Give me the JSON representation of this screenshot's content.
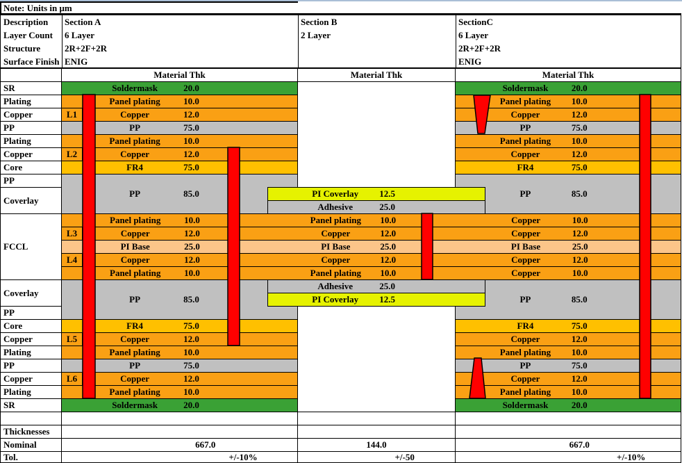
{
  "note": "Note: Units in μm",
  "header": {
    "row_labels": [
      "Description",
      "Layer Count",
      "Structure",
      "Surface Finish"
    ],
    "sections": [
      {
        "lines": [
          "Section A",
          "6 Layer",
          "2R+2F+2R",
          "ENIG"
        ]
      },
      {
        "lines": [
          "Section B",
          "2 Layer"
        ]
      },
      {
        "lines": [
          "SectionC",
          "6 Layer",
          "2R+2F+2R",
          "ENIG"
        ]
      }
    ],
    "material_thk": "Material Thk"
  },
  "colors": {
    "green": "#3AA135",
    "orange": "#FAA014",
    "gray": "#C0C0C0",
    "gold": "#FFC000",
    "peach": "#FCC589",
    "coverlay": "#E6F200",
    "red": "#FF0000",
    "grid": "#000000",
    "sheet_edge": "#A9BED6"
  },
  "stack": {
    "row_labels": [
      {
        "text": "SR",
        "row": 0,
        "rows": 1
      },
      {
        "text": "Plating",
        "row": 1,
        "rows": 1
      },
      {
        "text": "Copper",
        "row": 2,
        "rows": 1
      },
      {
        "text": "PP",
        "row": 3,
        "rows": 1
      },
      {
        "text": "Plating",
        "row": 4,
        "rows": 1
      },
      {
        "text": "Copper",
        "row": 5,
        "rows": 1
      },
      {
        "text": "Core",
        "row": 6,
        "rows": 1
      },
      {
        "text": "PP",
        "row": 7,
        "rows": 1
      },
      {
        "text": "Coverlay",
        "row": 8,
        "rows": 2
      },
      {
        "text": "FCCL",
        "row": 10,
        "rows": 5
      },
      {
        "text": "Coverlay",
        "row": 15,
        "rows": 2
      },
      {
        "text": "PP",
        "row": 17,
        "rows": 1
      },
      {
        "text": "Core",
        "row": 18,
        "rows": 1
      },
      {
        "text": "Copper",
        "row": 19,
        "rows": 1
      },
      {
        "text": "Plating",
        "row": 20,
        "rows": 1
      },
      {
        "text": "PP",
        "row": 21,
        "rows": 1
      },
      {
        "text": "Copper",
        "row": 22,
        "rows": 1
      },
      {
        "text": "Plating",
        "row": 23,
        "rows": 1
      },
      {
        "text": "SR",
        "row": 24,
        "rows": 1
      }
    ],
    "layer_ids": [
      {
        "text": "L1",
        "row": 2
      },
      {
        "text": "L2",
        "row": 5
      },
      {
        "text": "L3",
        "row": 11
      },
      {
        "text": "L4",
        "row": 13
      },
      {
        "text": "L5",
        "row": 19
      },
      {
        "text": "L6",
        "row": 22
      }
    ],
    "section_a": {
      "bars": [
        {
          "row": 0,
          "rows": 1,
          "color": "green",
          "name": "Soldermask",
          "thk": "20.0"
        },
        {
          "row": 1,
          "rows": 1,
          "color": "orange",
          "name": "Panel plating",
          "thk": "10.0"
        },
        {
          "row": 2,
          "rows": 1,
          "color": "orange",
          "name": "Copper",
          "thk": "12.0"
        },
        {
          "row": 3,
          "rows": 1,
          "color": "gray",
          "name": "PP",
          "thk": "75.0"
        },
        {
          "row": 4,
          "rows": 1,
          "color": "orange",
          "name": "Panel plating",
          "thk": "10.0"
        },
        {
          "row": 5,
          "rows": 1,
          "color": "orange",
          "name": "Copper",
          "thk": "12.0"
        },
        {
          "row": 6,
          "rows": 1,
          "color": "gold",
          "name": "FR4",
          "thk": "75.0"
        },
        {
          "row": 7,
          "rows": 3,
          "color": "gray",
          "name": "PP",
          "thk": "85.0"
        },
        {
          "row": 15,
          "rows": 3,
          "color": "gray",
          "name": "PP",
          "thk": "85.0"
        },
        {
          "row": 18,
          "rows": 1,
          "color": "gold",
          "name": "FR4",
          "thk": "75.0"
        },
        {
          "row": 19,
          "rows": 1,
          "color": "orange",
          "name": "Copper",
          "thk": "12.0"
        },
        {
          "row": 20,
          "rows": 1,
          "color": "orange",
          "name": "Panel plating",
          "thk": "10.0"
        },
        {
          "row": 21,
          "rows": 1,
          "color": "gray",
          "name": "PP",
          "thk": "75.0"
        },
        {
          "row": 22,
          "rows": 1,
          "color": "orange",
          "name": "Copper",
          "thk": "12.0"
        },
        {
          "row": 23,
          "rows": 1,
          "color": "orange",
          "name": "Panel plating",
          "thk": "10.0"
        },
        {
          "row": 24,
          "rows": 1,
          "color": "green",
          "name": "Soldermask",
          "thk": "20.0"
        }
      ]
    },
    "section_c": {
      "bars": [
        {
          "row": 0,
          "rows": 1,
          "color": "green",
          "name": "Soldermask",
          "thk": "20.0"
        },
        {
          "row": 1,
          "rows": 1,
          "color": "orange",
          "name": "Panel plating",
          "thk": "10.0"
        },
        {
          "row": 2,
          "rows": 1,
          "color": "orange",
          "name": "Copper",
          "thk": "12.0"
        },
        {
          "row": 3,
          "rows": 1,
          "color": "gray",
          "name": "PP",
          "thk": "75.0"
        },
        {
          "row": 4,
          "rows": 1,
          "color": "orange",
          "name": "Panel plating",
          "thk": "10.0"
        },
        {
          "row": 5,
          "rows": 1,
          "color": "orange",
          "name": "Copper",
          "thk": "12.0"
        },
        {
          "row": 6,
          "rows": 1,
          "color": "gold",
          "name": "FR4",
          "thk": "75.0"
        },
        {
          "row": 7,
          "rows": 3,
          "color": "gray",
          "name": "PP",
          "thk": "85.0"
        },
        {
          "row": 15,
          "rows": 3,
          "color": "gray",
          "name": "PP",
          "thk": "85.0"
        },
        {
          "row": 18,
          "rows": 1,
          "color": "gold",
          "name": "FR4",
          "thk": "75.0"
        },
        {
          "row": 19,
          "rows": 1,
          "color": "orange",
          "name": "Copper",
          "thk": "12.0"
        },
        {
          "row": 20,
          "rows": 1,
          "color": "orange",
          "name": "Panel plating",
          "thk": "10.0"
        },
        {
          "row": 21,
          "rows": 1,
          "color": "gray",
          "name": "PP",
          "thk": "75.0"
        },
        {
          "row": 22,
          "rows": 1,
          "color": "orange",
          "name": "Copper",
          "thk": "12.0"
        },
        {
          "row": 23,
          "rows": 1,
          "color": "orange",
          "name": "Panel plating",
          "thk": "10.0"
        },
        {
          "row": 24,
          "rows": 1,
          "color": "green",
          "name": "Soldermask",
          "thk": "20.0"
        }
      ]
    },
    "flex_band": {
      "rows": [
        {
          "row": 10,
          "color": "orange",
          "cells": [
            {
              "name": "Panel plating",
              "thk": "10.0"
            },
            {
              "name": "Panel plating",
              "thk": "10.0"
            },
            {
              "name": "Copper",
              "thk": "10.0"
            }
          ]
        },
        {
          "row": 11,
          "color": "orange",
          "cells": [
            {
              "name": "Copper",
              "thk": "12.0"
            },
            {
              "name": "Copper",
              "thk": "12.0"
            },
            {
              "name": "Copper",
              "thk": "12.0"
            }
          ]
        },
        {
          "row": 12,
          "color": "peach",
          "cells": [
            {
              "name": "PI Base",
              "thk": "25.0"
            },
            {
              "name": "PI Base",
              "thk": "25.0"
            },
            {
              "name": "PI Base",
              "thk": "25.0"
            }
          ]
        },
        {
          "row": 13,
          "color": "orange",
          "cells": [
            {
              "name": "Copper",
              "thk": "12.0"
            },
            {
              "name": "Copper",
              "thk": "12.0"
            },
            {
              "name": "Copper",
              "thk": "12.0"
            }
          ]
        },
        {
          "row": 14,
          "color": "orange",
          "cells": [
            {
              "name": "Panel plating",
              "thk": "10.0"
            },
            {
              "name": "Panel plating",
              "thk": "10.0"
            },
            {
              "name": "Copper",
              "thk": "10.0"
            }
          ]
        }
      ]
    },
    "section_b_block": {
      "bars": [
        {
          "row": 8,
          "rows": 1,
          "color": "coverlay",
          "name": "PI Coverlay",
          "thk": "12.5"
        },
        {
          "row": 9,
          "rows": 1,
          "color": "gray",
          "name": "Adhesive",
          "thk": "25.0"
        },
        {
          "row": 15,
          "rows": 1,
          "color": "gray",
          "name": "Adhesive",
          "thk": "25.0"
        },
        {
          "row": 16,
          "rows": 1,
          "color": "coverlay",
          "name": "PI Coverlay",
          "thk": "12.5"
        }
      ]
    }
  },
  "footer": {
    "rows": [
      {
        "label": "",
        "values": [
          "",
          "",
          ""
        ]
      },
      {
        "label": "Thicknesses",
        "values": [
          "",
          "",
          ""
        ]
      },
      {
        "label": "Nominal",
        "values": [
          "667.0",
          "144.0",
          "667.0"
        ]
      },
      {
        "label": "Tol.",
        "values": [
          "+/-10%",
          "+/-50",
          "+/-10%"
        ]
      }
    ]
  }
}
